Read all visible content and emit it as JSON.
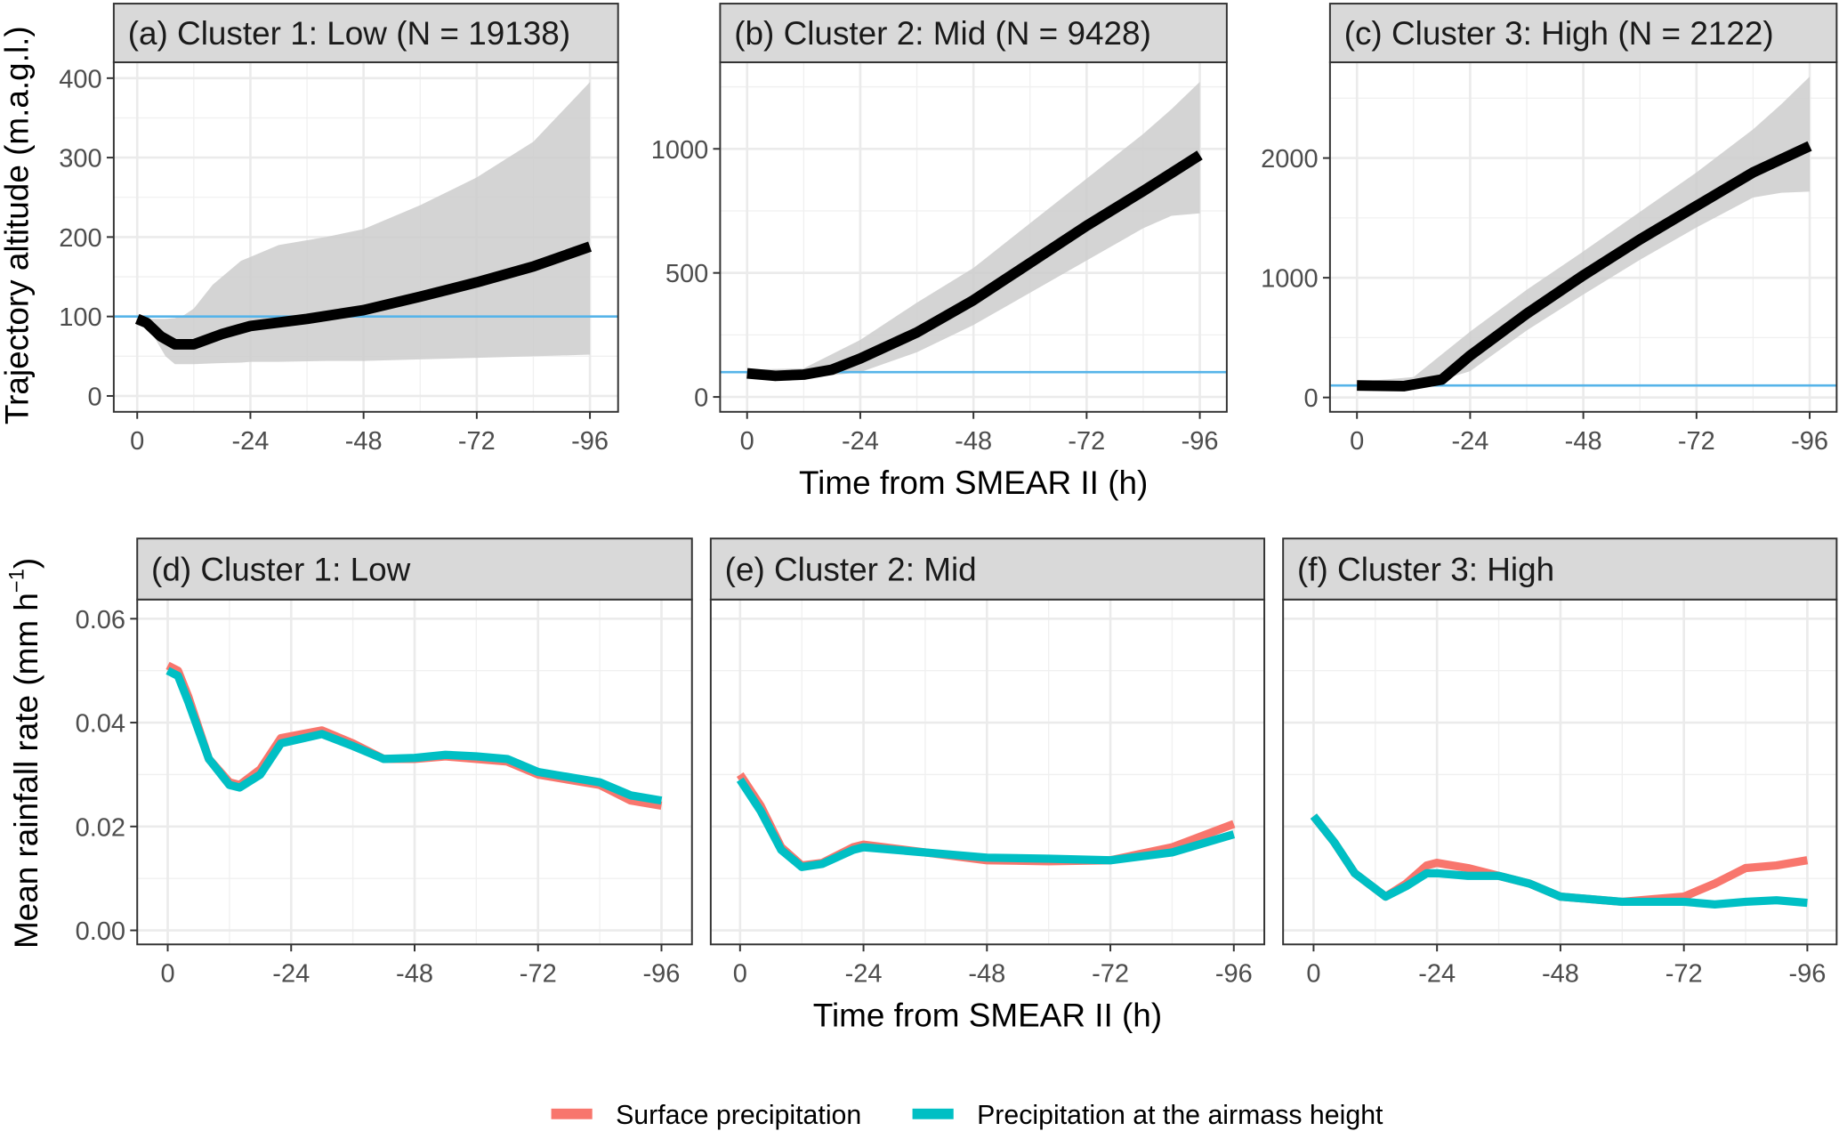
{
  "chart_data": [
    {
      "type": "line",
      "panel": "a",
      "title": "(a) Cluster 1: Low (N = 19138)",
      "ylabel": "Trajectory altitude (m.a.g.l.)",
      "xlabel": "",
      "xlim": [
        0,
        -96
      ],
      "ylim": [
        -20,
        420
      ],
      "xticks": [
        0,
        -24,
        -48,
        -72,
        -96
      ],
      "yticks": [
        0,
        100,
        200,
        300,
        400
      ],
      "grid": true,
      "reference_line": 100,
      "mean": {
        "x": [
          0,
          -2,
          -5,
          -8,
          -12,
          -18,
          -24,
          -36,
          -48,
          -60,
          -72,
          -84,
          -96
        ],
        "y": [
          97,
          92,
          75,
          65,
          65,
          78,
          88,
          97,
          108,
          125,
          143,
          163,
          188
        ]
      },
      "band": {
        "x": [
          0,
          -3,
          -6,
          -8,
          -10,
          -12,
          -16,
          -22,
          -24,
          -30,
          -40,
          -48,
          -60,
          -72,
          -84,
          -96
        ],
        "lower": [
          97,
          80,
          50,
          40,
          40,
          40,
          41,
          42,
          43,
          43,
          44,
          44,
          46,
          48,
          50,
          52
        ],
        "upper": [
          97,
          97,
          97,
          98,
          102,
          110,
          140,
          170,
          175,
          190,
          200,
          210,
          240,
          275,
          320,
          395
        ]
      }
    },
    {
      "type": "line",
      "panel": "b",
      "title": "(b) Cluster 2: Mid (N = 9428)",
      "xlabel": "Time from SMEAR II (h)",
      "xlim": [
        0,
        -96
      ],
      "ylim": [
        -60,
        1349
      ],
      "xticks": [
        0,
        -24,
        -48,
        -72,
        -96
      ],
      "yticks": [
        0,
        500,
        1000
      ],
      "grid": true,
      "reference_line": 100,
      "mean": {
        "x": [
          0,
          -6,
          -12,
          -18,
          -24,
          -36,
          -48,
          -60,
          -72,
          -84,
          -96
        ],
        "y": [
          95,
          85,
          90,
          110,
          155,
          260,
          390,
          540,
          690,
          830,
          975
        ]
      },
      "band": {
        "x": [
          0,
          -12,
          -24,
          -36,
          -48,
          -60,
          -72,
          -84,
          -90,
          -96
        ],
        "lower": [
          80,
          75,
          100,
          180,
          290,
          420,
          550,
          680,
          730,
          740
        ],
        "upper": [
          110,
          115,
          230,
          380,
          520,
          700,
          880,
          1060,
          1160,
          1270
        ]
      }
    },
    {
      "type": "line",
      "panel": "c",
      "title": "(c) Cluster 3: High (N = 2122)",
      "xlabel": "",
      "xlim": [
        0,
        -96
      ],
      "ylim": [
        -120,
        2800
      ],
      "xticks": [
        0,
        -24,
        -48,
        -72,
        -96
      ],
      "yticks": [
        0,
        1000,
        2000
      ],
      "grid": true,
      "reference_line": 100,
      "mean": {
        "x": [
          0,
          -10,
          -18,
          -24,
          -36,
          -48,
          -60,
          -72,
          -84,
          -96
        ],
        "y": [
          100,
          95,
          150,
          350,
          700,
          1020,
          1320,
          1600,
          1880,
          2100
        ]
      },
      "band": {
        "x": [
          0,
          -12,
          -24,
          -36,
          -48,
          -60,
          -72,
          -84,
          -90,
          -96
        ],
        "lower": [
          80,
          75,
          220,
          560,
          860,
          1150,
          1420,
          1670,
          1710,
          1720
        ],
        "upper": [
          130,
          170,
          550,
          900,
          1220,
          1550,
          1880,
          2240,
          2450,
          2680
        ]
      }
    },
    {
      "type": "line",
      "panel": "d",
      "title": "(d) Cluster 1: Low",
      "ylabel": "Mean rainfall rate (mm h",
      "ylabel_sup": "−1",
      "ylabel_close": ")",
      "xlabel": "",
      "xlim": [
        0,
        -96
      ],
      "ylim": [
        -0.0027,
        0.0637
      ],
      "xticks": [
        0,
        -24,
        -48,
        -72,
        -96
      ],
      "yticks": [
        "0.00",
        "0.02",
        "0.04",
        "0.06"
      ],
      "grid": true,
      "series": [
        {
          "name": "Surface precipitation",
          "x": [
            0,
            -2,
            -4,
            -8,
            -12,
            -14,
            -18,
            -22,
            -30,
            -36,
            -42,
            -48,
            -54,
            -60,
            -66,
            -72,
            -78,
            -84,
            -90,
            -96
          ],
          "y": [
            0.051,
            0.05,
            0.045,
            0.033,
            0.0285,
            0.028,
            0.031,
            0.037,
            0.0385,
            0.036,
            0.033,
            0.033,
            0.0335,
            0.033,
            0.0325,
            0.03,
            0.029,
            0.028,
            0.025,
            0.024
          ]
        },
        {
          "name": "Precipitation at the airmass height",
          "x": [
            0,
            -2,
            -4,
            -8,
            -12,
            -14,
            -18,
            -22,
            -30,
            -36,
            -42,
            -48,
            -54,
            -60,
            -66,
            -72,
            -78,
            -84,
            -90,
            -96
          ],
          "y": [
            0.05,
            0.049,
            0.044,
            0.033,
            0.028,
            0.0275,
            0.03,
            0.036,
            0.0378,
            0.0355,
            0.033,
            0.0332,
            0.0338,
            0.0335,
            0.033,
            0.0305,
            0.0295,
            0.0285,
            0.026,
            0.025
          ]
        }
      ]
    },
    {
      "type": "line",
      "panel": "e",
      "title": "(e) Cluster 2: Mid",
      "xlabel": "Time from SMEAR II (h)",
      "xlim": [
        0,
        -96
      ],
      "ylim": [
        -0.0027,
        0.0637
      ],
      "xticks": [
        0,
        -24,
        -48,
        -72,
        -96
      ],
      "grid": true,
      "series": [
        {
          "name": "Surface precipitation",
          "x": [
            0,
            -4,
            -8,
            -12,
            -16,
            -22,
            -24,
            -36,
            -48,
            -60,
            -72,
            -84,
            -96
          ],
          "y": [
            0.03,
            0.024,
            0.016,
            0.0125,
            0.013,
            0.016,
            0.0165,
            0.015,
            0.0135,
            0.0133,
            0.0135,
            0.016,
            0.0205
          ]
        },
        {
          "name": "Precipitation at the airmass height",
          "x": [
            0,
            -4,
            -8,
            -12,
            -16,
            -22,
            -24,
            -36,
            -48,
            -60,
            -72,
            -84,
            -96
          ],
          "y": [
            0.029,
            0.023,
            0.0155,
            0.0122,
            0.0128,
            0.0155,
            0.016,
            0.015,
            0.014,
            0.0138,
            0.0135,
            0.015,
            0.0185
          ]
        }
      ]
    },
    {
      "type": "line",
      "panel": "f",
      "title": "(f) Cluster 3: High",
      "xlabel": "",
      "xlim": [
        0,
        -96
      ],
      "ylim": [
        -0.0027,
        0.0637
      ],
      "xticks": [
        0,
        -24,
        -48,
        -72,
        -96
      ],
      "grid": true,
      "series": [
        {
          "name": "Surface precipitation",
          "x": [
            0,
            -4,
            -8,
            -14,
            -18,
            -22,
            -24,
            -30,
            -36,
            -42,
            -48,
            -60,
            -66,
            -72,
            -78,
            -84,
            -90,
            -96
          ],
          "y": [
            0.022,
            0.017,
            0.011,
            0.0065,
            0.009,
            0.0125,
            0.013,
            0.012,
            0.0105,
            0.009,
            0.0065,
            0.0055,
            0.006,
            0.0065,
            0.009,
            0.012,
            0.0125,
            0.0135
          ]
        },
        {
          "name": "Precipitation at the airmass height",
          "x": [
            0,
            -4,
            -8,
            -14,
            -18,
            -22,
            -24,
            -30,
            -36,
            -42,
            -48,
            -60,
            -66,
            -72,
            -78,
            -84,
            -90,
            -96
          ],
          "y": [
            0.022,
            0.017,
            0.011,
            0.0065,
            0.0085,
            0.011,
            0.011,
            0.0105,
            0.0105,
            0.009,
            0.0065,
            0.0055,
            0.0055,
            0.0055,
            0.005,
            0.0055,
            0.0058,
            0.0053
          ]
        }
      ]
    }
  ],
  "legend": {
    "position": "bottom",
    "items": [
      {
        "label": "Surface precipitation",
        "color": "#F8766D"
      },
      {
        "label": "Precipitation at the airmass height",
        "color": "#00BFC4"
      }
    ]
  },
  "colors": {
    "mean_line": "#000000",
    "band": "#cccccc",
    "reference_line": "#56B4E9",
    "strip": "#d9d9d9"
  }
}
